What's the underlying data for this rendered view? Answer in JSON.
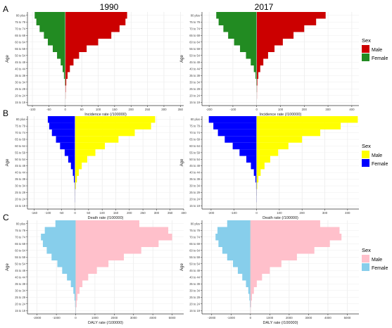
{
  "figure": {
    "column_titles": [
      "1990",
      "2017"
    ],
    "age_groups": [
      "15 to 19",
      "20 to 24",
      "25 to 29",
      "30 to 34",
      "35 to 39",
      "40 to 44",
      "45 to 49",
      "50 to 54",
      "55 to 59",
      "60 to 64",
      "65 to 69",
      "70 to 74",
      "75 to 79",
      "80 plus"
    ],
    "y_label": "Age",
    "legend_title": "Sex"
  },
  "chart_data": [
    {
      "type": "bar",
      "row_label": "A",
      "title": "1990",
      "xlabel": "Incidence rate (/100000)",
      "ylabel": "Age",
      "x_ticks": [
        -100,
        -50,
        0,
        50,
        100,
        150,
        200,
        250,
        300,
        350
      ],
      "xlim": [
        -115,
        360
      ],
      "categories": [
        "15 to 19",
        "20 to 24",
        "25 to 29",
        "30 to 34",
        "35 to 39",
        "40 to 44",
        "45 to 49",
        "50 to 54",
        "55 to 59",
        "60 to 64",
        "65 to 69",
        "70 to 74",
        "75 to 79",
        "80 plus"
      ],
      "series": [
        {
          "name": "Male",
          "values": [
            0,
            0.5,
            1.5,
            3,
            7,
            14,
            25,
            42,
            65,
            100,
            140,
            165,
            183,
            188
          ],
          "color": "#cc0000"
        },
        {
          "name": "Female",
          "values": [
            0,
            -0.3,
            -0.5,
            -1.5,
            -4,
            -8,
            -14,
            -25,
            -38,
            -53,
            -65,
            -78,
            -88,
            -93
          ],
          "color": "#228b22"
        }
      ],
      "legend": {
        "title": "Sex",
        "entries": [
          "Male",
          "Female"
        ],
        "position": "right"
      }
    },
    {
      "type": "bar",
      "row_label": "",
      "title": "2017",
      "xlabel": "Incidence rate (/100000)",
      "ylabel": "Age",
      "x_ticks": [
        -200,
        -100,
        0,
        100,
        200,
        300,
        400
      ],
      "xlim": [
        -230,
        430
      ],
      "categories": [
        "15 to 19",
        "20 to 24",
        "25 to 29",
        "30 to 34",
        "35 to 39",
        "40 to 44",
        "45 to 49",
        "50 to 54",
        "55 to 59",
        "60 to 64",
        "65 to 69",
        "70 to 74",
        "75 to 79",
        "80 plus"
      ],
      "series": [
        {
          "name": "Male",
          "values": [
            0,
            0.5,
            1.5,
            3,
            7,
            15,
            28,
            48,
            75,
            110,
            155,
            200,
            250,
            290
          ],
          "color": "#cc0000"
        },
        {
          "name": "Female",
          "values": [
            0,
            -0.5,
            -1,
            -2,
            -5,
            -12,
            -25,
            -45,
            -70,
            -95,
            -120,
            -140,
            -160,
            -170
          ],
          "color": "#228b22"
        }
      ]
    },
    {
      "type": "bar",
      "row_label": "B",
      "title": "",
      "xlabel": "Death rate (/100000)",
      "ylabel": "Age",
      "x_ticks": [
        -150,
        -100,
        -50,
        0,
        50,
        100,
        150,
        200,
        250,
        300,
        350,
        400
      ],
      "xlim": [
        -175,
        400
      ],
      "categories": [
        "15 to 19",
        "20 to 24",
        "25 to 29",
        "30 to 34",
        "35 to 39",
        "40 to 44",
        "45 to 49",
        "50 to 54",
        "55 to 59",
        "60 to 64",
        "65 to 69",
        "70 to 74",
        "75 to 79",
        "80 plus"
      ],
      "series": [
        {
          "name": "Male",
          "values": [
            0,
            0.5,
            1,
            3,
            7,
            14,
            25,
            45,
            75,
            110,
            160,
            220,
            280,
            295
          ],
          "color": "#ffff00"
        },
        {
          "name": "Female",
          "values": [
            0,
            -0.2,
            -0.5,
            -1.5,
            -4,
            -8,
            -15,
            -25,
            -38,
            -55,
            -70,
            -85,
            -95,
            -100
          ],
          "color": "#0000ff"
        }
      ],
      "legend": {
        "title": "Sex",
        "entries": [
          "Male",
          "Female"
        ],
        "position": "right"
      }
    },
    {
      "type": "bar",
      "row_label": "",
      "title": "",
      "xlabel": "Death rate (/100000)",
      "ylabel": "Age",
      "x_ticks": [
        -200,
        -100,
        0,
        100,
        200,
        300,
        400
      ],
      "xlim": [
        -240,
        450
      ],
      "categories": [
        "15 to 19",
        "20 to 24",
        "25 to 29",
        "30 to 34",
        "35 to 39",
        "40 to 44",
        "45 to 49",
        "50 to 54",
        "55 to 59",
        "60 to 64",
        "65 to 69",
        "70 to 74",
        "75 to 79",
        "80 plus"
      ],
      "series": [
        {
          "name": "Male",
          "values": [
            0,
            0.5,
            1,
            3,
            8,
            18,
            35,
            60,
            95,
            140,
            200,
            280,
            370,
            445
          ],
          "color": "#ffff00"
        },
        {
          "name": "Female",
          "values": [
            0,
            -0.3,
            -1,
            -2,
            -5,
            -12,
            -25,
            -45,
            -75,
            -105,
            -140,
            -170,
            -190,
            -210
          ],
          "color": "#0000ff"
        }
      ]
    },
    {
      "type": "bar",
      "row_label": "C",
      "title": "",
      "xlabel": "DALY rate (/100000)",
      "ylabel": "Age",
      "x_ticks": [
        -2000,
        -1000,
        0,
        1000,
        2000,
        3000,
        4000,
        5000
      ],
      "xlim": [
        -2500,
        5600
      ],
      "categories": [
        "15 to 19",
        "20 to 24",
        "25 to 29",
        "30 to 34",
        "35 to 39",
        "40 to 44",
        "45 to 49",
        "50 to 54",
        "55 to 59",
        "60 to 64",
        "65 to 69",
        "70 to 74",
        "75 to 79",
        "80 plus"
      ],
      "series": [
        {
          "name": "Male",
          "values": [
            20,
            50,
            90,
            200,
            350,
            650,
            1100,
            1700,
            2500,
            3400,
            4300,
            5000,
            4800,
            3300
          ],
          "color": "#ffc0cb"
        },
        {
          "name": "Female",
          "values": [
            -10,
            -30,
            -60,
            -120,
            -250,
            -450,
            -700,
            -950,
            -1250,
            -1500,
            -1700,
            -1800,
            -1600,
            -1050
          ],
          "color": "#87ceeb"
        }
      ],
      "legend": {
        "title": "Sex",
        "entries": [
          "Male",
          "Female"
        ],
        "position": "right"
      }
    },
    {
      "type": "bar",
      "row_label": "",
      "title": "",
      "xlabel": "DALY rate (/100000)",
      "ylabel": "Age",
      "x_ticks": [
        -2000,
        -1000,
        0,
        1000,
        2000,
        3000,
        4000,
        5000
      ],
      "xlim": [
        -2500,
        5600
      ],
      "categories": [
        "15 to 19",
        "20 to 24",
        "25 to 29",
        "30 to 34",
        "35 to 39",
        "40 to 44",
        "45 to 49",
        "50 to 54",
        "55 to 59",
        "60 to 64",
        "65 to 69",
        "70 to 74",
        "75 to 79",
        "80 plus"
      ],
      "series": [
        {
          "name": "Male",
          "values": [
            15,
            40,
            80,
            180,
            330,
            600,
            1000,
            1600,
            2400,
            3300,
            4100,
            4700,
            4600,
            3600
          ],
          "color": "#ffc0cb"
        },
        {
          "name": "Female",
          "values": [
            -10,
            -25,
            -55,
            -110,
            -230,
            -420,
            -650,
            -900,
            -1200,
            -1450,
            -1650,
            -1800,
            -1700,
            -1200
          ],
          "color": "#87ceeb"
        }
      ]
    }
  ]
}
